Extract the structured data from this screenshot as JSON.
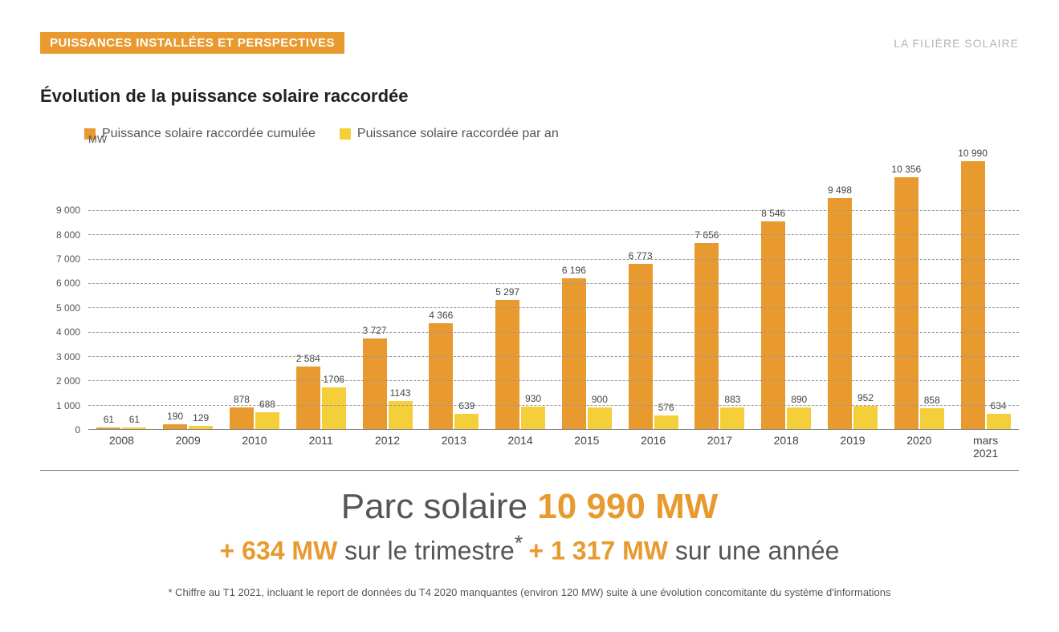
{
  "header": {
    "badge": "PUISSANCES INSTALLÉES ET PERSPECTIVES",
    "topRight": "LA FILIÈRE SOLAIRE"
  },
  "chart": {
    "title": "Évolution de la puissance solaire raccordée",
    "type": "grouped-bar",
    "yAxisLabel": "MW",
    "yMax": 11500,
    "yTicks": [
      0,
      1000,
      2000,
      3000,
      4000,
      5000,
      6000,
      7000,
      8000,
      9000
    ],
    "yTickLabels": [
      "0",
      "1 000",
      "2 000",
      "3 000",
      "4 000",
      "5 000",
      "6 000",
      "7 000",
      "8 000",
      "9 000"
    ],
    "legend": [
      {
        "label": "Puissance solaire raccordée cumulée",
        "color": "#e89a2e"
      },
      {
        "label": "Puissance solaire raccordée par an",
        "color": "#f5cf3a"
      }
    ],
    "categories": [
      "2008",
      "2009",
      "2010",
      "2011",
      "2012",
      "2013",
      "2014",
      "2015",
      "2016",
      "2017",
      "2018",
      "2019",
      "2020",
      "mars 2021"
    ],
    "series": [
      {
        "name": "cumulee",
        "color": "#e89a2e",
        "values": [
          61,
          190,
          878,
          2584,
          3727,
          4366,
          5297,
          6196,
          6773,
          7656,
          8546,
          9498,
          10356,
          10990
        ],
        "labels": [
          "61",
          "190",
          "878",
          "2 584",
          "3 727",
          "4 366",
          "5 297",
          "6 196",
          "6 773",
          "7 656",
          "8 546",
          "9 498",
          "10 356",
          "10 990"
        ]
      },
      {
        "name": "par_an",
        "color": "#f5cf3a",
        "values": [
          61,
          129,
          688,
          1706,
          1143,
          639,
          930,
          900,
          576,
          883,
          890,
          952,
          858,
          634
        ],
        "labels": [
          "61",
          "129",
          "688",
          "1706",
          "1143",
          "639",
          "930",
          "900",
          "576",
          "883",
          "890",
          "952",
          "858",
          "634"
        ]
      }
    ],
    "gridColor": "#999999",
    "backgroundColor": "#ffffff",
    "barWidth": 30
  },
  "summary": {
    "line1_pre": "Parc solaire ",
    "line1_hl": "10 990 MW",
    "line2_hl1": "+ 634 MW ",
    "line2_t1": "sur le trimestre",
    "line2_star": "* ",
    "line2_hl2": "+ 1 317 MW ",
    "line2_t2": "sur une année"
  },
  "footnote": "* Chiffre au T1 2021, incluant le report de données du T4 2020 manquantes (environ 120 MW) suite à une évolution concomitante du système d'informations"
}
